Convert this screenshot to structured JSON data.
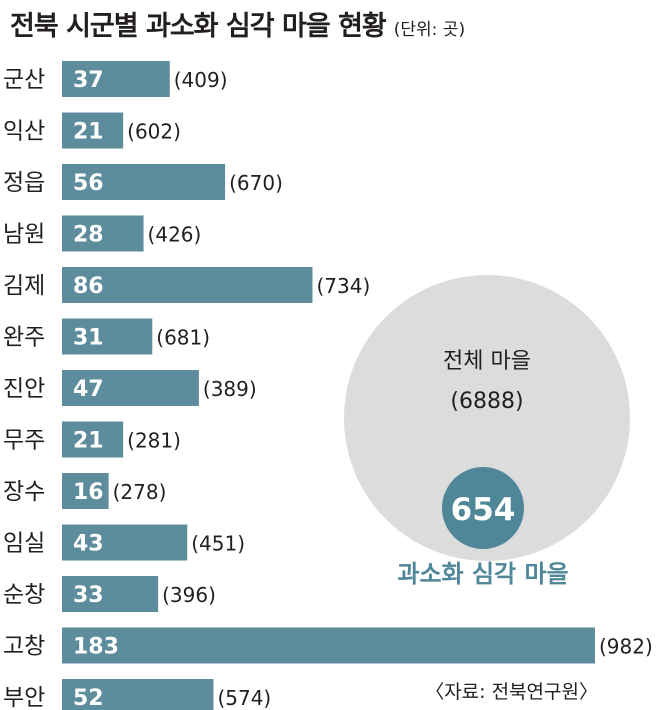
{
  "chart_data": {
    "type": "bar",
    "orientation": "horizontal",
    "title": "전북 시군별 과소화 심각 마을 현황",
    "unit": "(단위: 곳)",
    "categories": [
      "군산",
      "익산",
      "정읍",
      "남원",
      "김제",
      "완주",
      "진안",
      "무주",
      "장수",
      "임실",
      "순창",
      "고창",
      "부안"
    ],
    "series": [
      {
        "values": [
          37,
          21,
          56,
          28,
          86,
          31,
          47,
          21,
          16,
          43,
          33,
          183,
          52
        ]
      }
    ],
    "totals": [
      409,
      602,
      670,
      426,
      734,
      681,
      389,
      281,
      278,
      451,
      396,
      982,
      574
    ],
    "grid": false,
    "legend": "none",
    "inset": {
      "total_label": "전체 마을",
      "total_value": 6888,
      "part_value": 654,
      "part_label": "과소화 심각 마을"
    },
    "source": "〈자료: 전북연구원〉",
    "colors": {
      "bar": "#5d8c9c",
      "bar_text": "#ffffff",
      "text": "#231f20",
      "big_circle": "#dcdcdc",
      "small_circle": "#4f8799",
      "part_label": "#4f8799"
    }
  }
}
